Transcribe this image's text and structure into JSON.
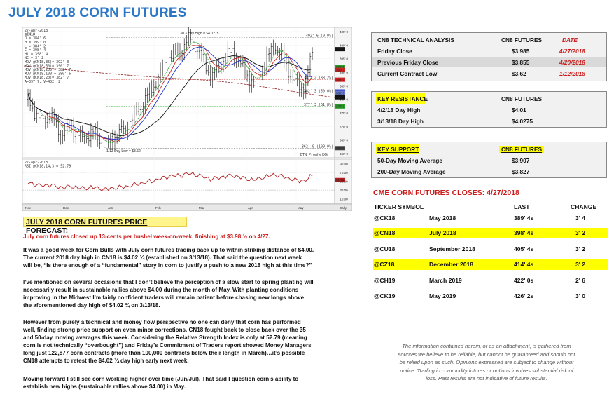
{
  "title": "JULY 2018 CORN FUTURES",
  "chart": {
    "header": [
      "27-Apr-2018",
      "@CN18",
      "O = 384' 6",
      "H = 399' 0",
      "L = 384' 2",
      "C = 398' 4",
      "Hi = 398' 4",
      "NC = 3' 2",
      "MOV(@CN18,35)= 392' 0",
      "MOV(@CN18,50)= 390' 7",
      "MOV(@CN18,200)= 382' 7",
      "MOV(@CN18,100)= 380' 6",
      "MOV(@CN18,20)= 382' 7",
      "A=397.7, V=402' 2"
    ],
    "high_label": "3/13 Day High = $4.0275",
    "low_label": "1/12 Day Low = $3.62",
    "fib_labels": [
      "402' 6 (0.0%)",
      "387' 2 (38.2%)",
      "382' 3 (50.0%)",
      "377' 3 (61.8%)",
      "362' 0 (100.0%)"
    ],
    "price_axis": [
      "405' 0",
      "400' 0",
      "395' 0",
      "390' 0",
      "385' 0",
      "380' 0",
      "375' 0",
      "370' 0",
      "365' 0",
      "360' 0"
    ],
    "price_tags": [
      "398' 4",
      "392' 0",
      "390' 7",
      "387' 2",
      "382' 7",
      "382' 3",
      "380' 6",
      "377' 3",
      "362' 0"
    ],
    "rsi_header": [
      "27-Apr-2018",
      "RSI(@CN18,14,3)= 52.79"
    ],
    "rsi_axis": [
      "90.00",
      "70.00",
      "50.00",
      "30.00",
      "10.00"
    ],
    "rsi_tag": "52.79",
    "months": [
      "Nov",
      "Dec",
      "Jan",
      "Feb",
      "Mar",
      "Apr",
      "May"
    ],
    "watermark": "DTN ProphetX®",
    "period": "Daily"
  },
  "forecast": {
    "heading": "JULY 2018 CORN FUTURES PRICE FORECAST:",
    "lead": "July corn futures closed up 13-cents per bushel week-on-week, finishing at $3.98 ½ on 4/27.",
    "p1": [
      "It was a good week for Corn Bulls with July corn futures trading back up to within striking distance of $4.00.",
      "The current 2018 day high in CN18 is $4.02 ¾ (established on 3/13/18). That said the question next week",
      "will be, “Is there enough of a “fundamental” story in corn to justify a push to a new 2018 high at this time?”"
    ],
    "p2": [
      "I’ve mentioned on several occasions that I don’t believe the perception of a slow start to spring planting will",
      "necessarily result in sustainable rallies above $4.00 during the month of May. With planting conditions",
      "improving in the Midwest I’m fairly confident traders will remain patient before chasing new longs above",
      "the aforementioned day high of $4.02 ¾ on 3/13/18."
    ],
    "p3": [
      "However from purely a technical and money flow perspective no one can deny that corn has performed",
      "well, finding strong price support on even minor corrections. CN18 fought back to close back over the 35",
      "and 50-day moving averages this week. Considering the Relative Strength Index is only at 52.79 (meaning",
      "corn is not technically “overbought”) and Friday’s Commitment of Traders report showed Money Managers",
      "long just 122,877 corn contracts (more than 100,000 contracts below their length in March)…it’s possible",
      "CN18 attempts to retest the $4.02 ¾ day high early next week."
    ],
    "p4": [
      "Moving forward I still see corn working higher over time (Jun/Jul). That said I question corn’s ability to",
      "establish new highs (sustainable rallies above $4.00) in May."
    ]
  },
  "technical": {
    "headers": [
      "CN8 TECHNICAL ANALYSIS",
      "CN8 FUTURES",
      "DATE"
    ],
    "rows": [
      {
        "label": "Friday Close",
        "price": "$3.985",
        "date": "4/27/2018"
      },
      {
        "label": "Previous Friday Close",
        "price": "$3.855",
        "date": "4/20/2018"
      },
      {
        "label": "Current Contract Low",
        "price": "$3.62",
        "date": "1/12/2018"
      }
    ]
  },
  "resistance": {
    "headers": [
      "KEY RESISTANCE",
      "CN8 FUTURES"
    ],
    "rows": [
      {
        "label": "4/2/18 Day High",
        "price": "$4.01"
      },
      {
        "label": "3/13/18 Day High",
        "price": "$4.0275"
      }
    ]
  },
  "support": {
    "headers": [
      "KEY SUPPORT",
      "CN8 FUTURES"
    ],
    "rows": [
      {
        "label": "50-Day Moving Average",
        "price": "$3.907"
      },
      {
        "label": "200-Day Moving Average",
        "price": "$3.827"
      }
    ]
  },
  "closes": {
    "title": "CME CORN FUTURES CLOSES:  4/27/2018",
    "headers": [
      "TICKER SYMBOL",
      "LAST",
      "CHANGE"
    ],
    "rows": [
      {
        "ticker": "@CK18",
        "month": "May 2018",
        "last": "389' 4s",
        "change": "3' 4"
      },
      {
        "ticker": "@CN18",
        "month": "July 2018",
        "last": "398' 4s",
        "change": "3' 2"
      },
      {
        "ticker": "@CU18",
        "month": "September 2018",
        "last": "405' 4s",
        "change": "3' 2"
      },
      {
        "ticker": "@CZ18",
        "month": "December 2018",
        "last": "414' 4s",
        "change": "3' 2"
      },
      {
        "ticker": "@CH19",
        "month": "March 2019",
        "last": "422' 0s",
        "change": "2' 6"
      },
      {
        "ticker": "@CK19",
        "month": "May 2019",
        "last": "426' 2s",
        "change": "3' 0"
      }
    ]
  },
  "disclaimer": [
    "The information contained herein, or as an attachment, is gathered from",
    "sources we believe to be reliable, but cannot be guaranteed and should not",
    "be relied upon as such. Opinions expressed are subject to change without",
    "notice. Trading in commodity futures or options involves substantial risk of",
    "loss. Past results are not indicative of future results."
  ]
}
